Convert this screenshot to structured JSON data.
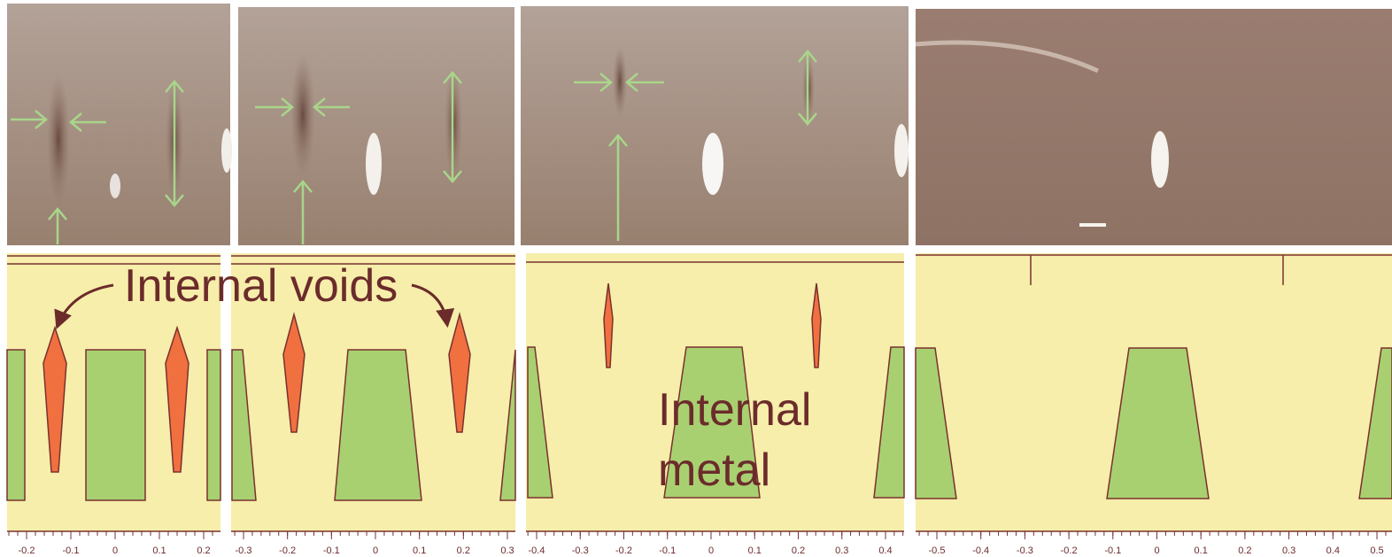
{
  "annotations": {
    "voids": "Internal voids",
    "metal_line1": "Internal",
    "metal_line2": "metal"
  },
  "panels": [
    {
      "ticks": [
        "-0.2",
        "-0.1",
        "0",
        "0.1",
        "0.2"
      ]
    },
    {
      "ticks": [
        "-0.3",
        "-0.2",
        "-0.1",
        "0",
        "0.1",
        "0.2",
        "0.3"
      ]
    },
    {
      "ticks": [
        "-0.4",
        "-0.3",
        "-0.2",
        "-0.1",
        "0",
        "0.1",
        "0.2",
        "0.3",
        "0.4"
      ]
    },
    {
      "ticks": [
        "-0.5",
        "-0.4",
        "-0.3",
        "-0.2",
        "-0.1",
        "0",
        "0.1",
        "0.2",
        "0.3",
        "0.4",
        "0.5"
      ]
    }
  ]
}
